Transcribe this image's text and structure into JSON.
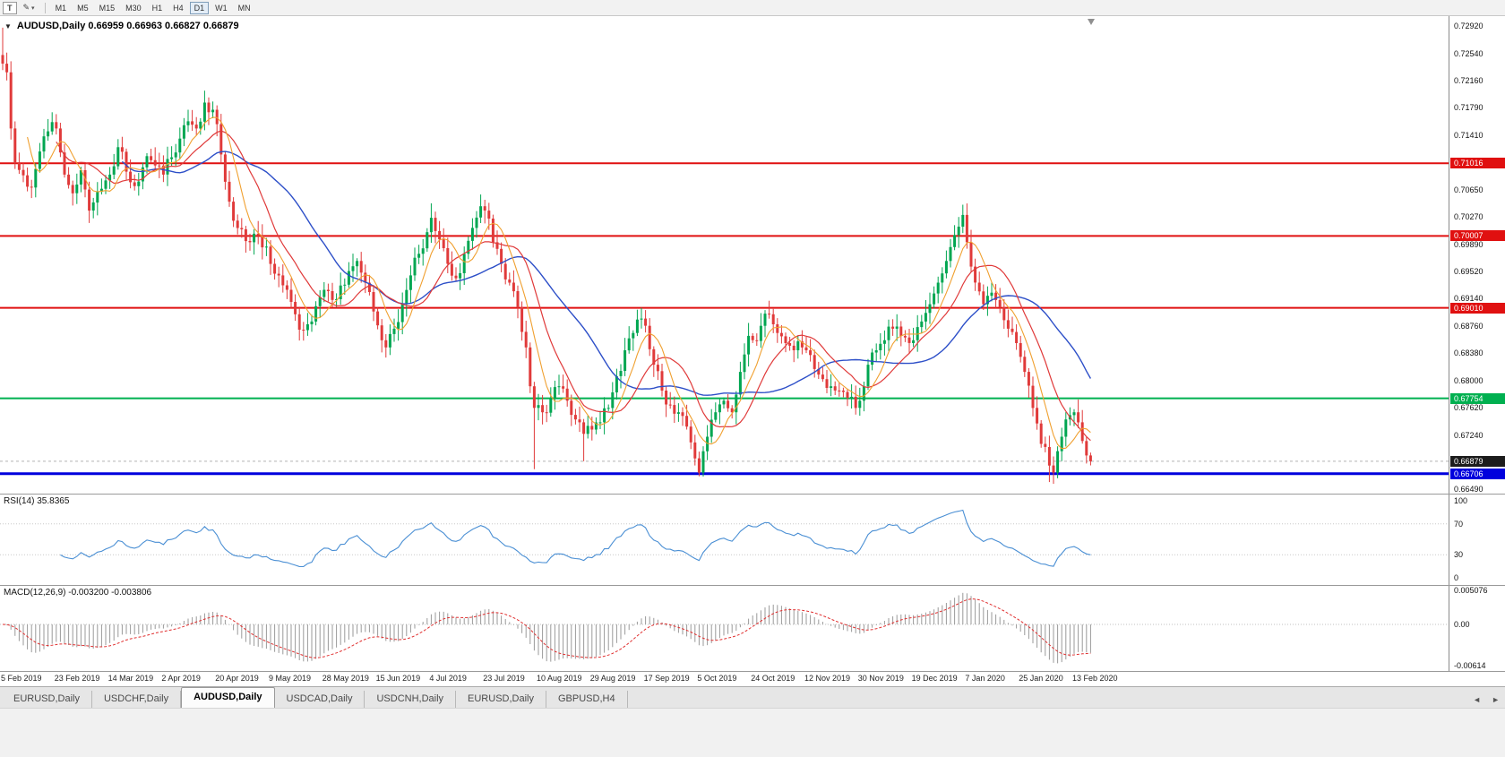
{
  "toolbar": {
    "template_button": "T",
    "draw_button": "✎",
    "dropdown_arrow": "▾",
    "timeframes": [
      "M1",
      "M5",
      "M15",
      "M30",
      "H1",
      "H4",
      "D1",
      "W1",
      "MN"
    ],
    "active_timeframe": "D1"
  },
  "chart": {
    "collapse_arrow": "▼",
    "symbol_ohlc": "AUDUSD,Daily  0.66959 0.66963 0.66827 0.66879"
  },
  "current_price": {
    "value": 0.66879,
    "label": "0.66879",
    "color": "#1c1c1c"
  },
  "levels": [
    {
      "price": 0.71016,
      "label": "0.71016",
      "color": "#e01010",
      "width": 2
    },
    {
      "price": 0.70007,
      "label": "0.70007",
      "color": "#e01010",
      "width": 2
    },
    {
      "price": 0.6901,
      "label": "0.69010",
      "color": "#e01010",
      "width": 2
    },
    {
      "price": 0.67754,
      "label": "0.67754",
      "color": "#00b050",
      "width": 2
    },
    {
      "price": 0.66706,
      "label": "0.66706",
      "color": "#0000dd",
      "width": 3
    }
  ],
  "price_axis": {
    "ticks": [
      "0.72920",
      "0.72540",
      "0.72160",
      "0.71790",
      "0.71410",
      "0.70650",
      "0.70270",
      "0.69890",
      "0.69520",
      "0.69140",
      "0.68760",
      "0.68380",
      "0.68000",
      "0.67620",
      "0.67240",
      "0.66490"
    ]
  },
  "rsi": {
    "header": "RSI(14) 35.8365",
    "axis": [
      "100",
      "70",
      "30",
      "0"
    ],
    "levels": [
      70,
      30
    ],
    "color": "#4a8fd4"
  },
  "macd": {
    "header": "MACD(12,26,9) -0.003200 -0.003806",
    "axis": [
      "0.005076",
      "0.00",
      "-0.00614"
    ],
    "scale_max": 0.005076,
    "scale_min": -0.00614
  },
  "dates": [
    "5 Feb 2019",
    "23 Feb 2019",
    "14 Mar 2019",
    "2 Apr 2019",
    "20 Apr 2019",
    "9 May 2019",
    "28 May 2019",
    "15 Jun 2019",
    "4 Jul 2019",
    "23 Jul 2019",
    "10 Aug 2019",
    "29 Aug 2019",
    "17 Sep 2019",
    "5 Oct 2019",
    "24 Oct 2019",
    "12 Nov 2019",
    "30 Nov 2019",
    "19 Dec 2019",
    "7 Jan 2020",
    "25 Jan 2020",
    "13 Feb 2020"
  ],
  "tabs": [
    "EURUSD,Daily",
    "USDCHF,Daily",
    "AUDUSD,Daily",
    "USDCAD,Daily",
    "USDCNH,Daily",
    "EURUSD,Daily",
    "GBPUSD,H4"
  ],
  "active_tab": 2,
  "tab_arrows": {
    "left": "◄",
    "right": "►"
  },
  "chart_data": {
    "type": "candlestick",
    "symbol": "AUDUSD",
    "timeframe": "Daily",
    "title": "AUDUSD,Daily",
    "price_max": 0.7306,
    "price_min": 0.6643,
    "candle_count": 265,
    "bar_spacing": 4.6,
    "noise": 0.0011,
    "wick": 0.0018,
    "last_close": 0.66879,
    "close_waypoints": [
      [
        0,
        0.724
      ],
      [
        1,
        0.7228
      ],
      [
        2,
        0.715
      ],
      [
        3,
        0.7102
      ],
      [
        5,
        0.7085
      ],
      [
        7,
        0.7068
      ],
      [
        9,
        0.7118
      ],
      [
        11,
        0.7146
      ],
      [
        13,
        0.715
      ],
      [
        15,
        0.7086
      ],
      [
        17,
        0.706
      ],
      [
        19,
        0.7092
      ],
      [
        21,
        0.7036
      ],
      [
        23,
        0.7062
      ],
      [
        26,
        0.7086
      ],
      [
        28,
        0.7124
      ],
      [
        30,
        0.709
      ],
      [
        32,
        0.707
      ],
      [
        34,
        0.7096
      ],
      [
        36,
        0.7106
      ],
      [
        39,
        0.7086
      ],
      [
        41,
        0.711
      ],
      [
        43,
        0.7136
      ],
      [
        45,
        0.716
      ],
      [
        47,
        0.715
      ],
      [
        49,
        0.7186
      ],
      [
        51,
        0.7176
      ],
      [
        52,
        0.7156
      ],
      [
        54,
        0.7076
      ],
      [
        56,
        0.7022
      ],
      [
        58,
        0.701
      ],
      [
        60,
        0.6992
      ],
      [
        62,
        0.7002
      ],
      [
        64,
        0.6986
      ],
      [
        65,
        0.6962
      ],
      [
        67,
        0.6946
      ],
      [
        69,
        0.6926
      ],
      [
        71,
        0.6892
      ],
      [
        73,
        0.687
      ],
      [
        75,
        0.6882
      ],
      [
        77,
        0.6916
      ],
      [
        78,
        0.6926
      ],
      [
        80,
        0.6912
      ],
      [
        82,
        0.6932
      ],
      [
        84,
        0.6952
      ],
      [
        86,
        0.6966
      ],
      [
        88,
        0.6936
      ],
      [
        90,
        0.6896
      ],
      [
        92,
        0.6856
      ],
      [
        93,
        0.6846
      ],
      [
        95,
        0.6872
      ],
      [
        97,
        0.6906
      ],
      [
        99,
        0.6946
      ],
      [
        101,
        0.6976
      ],
      [
        103,
        0.7006
      ],
      [
        104,
        0.7026
      ],
      [
        106,
        0.6996
      ],
      [
        108,
        0.6962
      ],
      [
        110,
        0.6942
      ],
      [
        112,
        0.6976
      ],
      [
        114,
        0.7012
      ],
      [
        116,
        0.7042
      ],
      [
        117,
        0.7036
      ],
      [
        119,
        0.6992
      ],
      [
        121,
        0.6962
      ],
      [
        123,
        0.6936
      ],
      [
        125,
        0.6902
      ],
      [
        127,
        0.6846
      ],
      [
        128,
        0.6792
      ],
      [
        129,
        0.6762
      ],
      [
        131,
        0.6756
      ],
      [
        133,
        0.6776
      ],
      [
        135,
        0.6792
      ],
      [
        137,
        0.6772
      ],
      [
        139,
        0.6746
      ],
      [
        141,
        0.6726
      ],
      [
        143,
        0.6732
      ],
      [
        145,
        0.6742
      ],
      [
        147,
        0.6762
      ],
      [
        149,
        0.6806
      ],
      [
        151,
        0.6842
      ],
      [
        153,
        0.6866
      ],
      [
        155,
        0.6886
      ],
      [
        156,
        0.6876
      ],
      [
        158,
        0.6822
      ],
      [
        160,
        0.6786
      ],
      [
        162,
        0.6766
      ],
      [
        164,
        0.6756
      ],
      [
        166,
        0.6736
      ],
      [
        168,
        0.6692
      ],
      [
        169,
        0.6672
      ],
      [
        171,
        0.6722
      ],
      [
        173,
        0.6756
      ],
      [
        175,
        0.6772
      ],
      [
        177,
        0.6756
      ],
      [
        179,
        0.6812
      ],
      [
        181,
        0.6862
      ],
      [
        182,
        0.6856
      ],
      [
        184,
        0.6876
      ],
      [
        186,
        0.6892
      ],
      [
        188,
        0.6866
      ],
      [
        190,
        0.6852
      ],
      [
        192,
        0.6842
      ],
      [
        194,
        0.6846
      ],
      [
        195,
        0.6842
      ],
      [
        197,
        0.6816
      ],
      [
        199,
        0.6802
      ],
      [
        201,
        0.6792
      ],
      [
        203,
        0.6786
      ],
      [
        205,
        0.6776
      ],
      [
        207,
        0.6762
      ],
      [
        208,
        0.6772
      ],
      [
        210,
        0.6822
      ],
      [
        212,
        0.6842
      ],
      [
        214,
        0.6856
      ],
      [
        216,
        0.6872
      ],
      [
        218,
        0.6862
      ],
      [
        220,
        0.6852
      ],
      [
        221,
        0.6856
      ],
      [
        223,
        0.6882
      ],
      [
        225,
        0.6906
      ],
      [
        227,
        0.6936
      ],
      [
        229,
        0.6966
      ],
      [
        231,
        0.7002
      ],
      [
        233,
        0.703
      ],
      [
        234,
        0.6992
      ],
      [
        236,
        0.6936
      ],
      [
        238,
        0.6906
      ],
      [
        240,
        0.6922
      ],
      [
        242,
        0.6902
      ],
      [
        244,
        0.6872
      ],
      [
        246,
        0.6852
      ],
      [
        248,
        0.6812
      ],
      [
        250,
        0.6762
      ],
      [
        252,
        0.6712
      ],
      [
        254,
        0.6682
      ],
      [
        255,
        0.6672
      ],
      [
        256,
        0.6702
      ],
      [
        257,
        0.6722
      ],
      [
        258,
        0.6746
      ],
      [
        259,
        0.6752
      ],
      [
        260,
        0.6756
      ],
      [
        261,
        0.6742
      ],
      [
        262,
        0.6716
      ],
      [
        263,
        0.6696
      ],
      [
        264,
        0.66879
      ]
    ],
    "special_wicks": [
      {
        "i": 0,
        "high": 0.729
      },
      {
        "i": 49,
        "high": 0.7194
      },
      {
        "i": 93,
        "low": 0.6832
      },
      {
        "i": 104,
        "high": 0.7046
      },
      {
        "i": 116,
        "high": 0.7046
      },
      {
        "i": 129,
        "low": 0.6677
      },
      {
        "i": 141,
        "low": 0.6688
      },
      {
        "i": 169,
        "low": 0.667
      },
      {
        "i": 233,
        "high": 0.704
      },
      {
        "i": 254,
        "low": 0.6659
      }
    ],
    "date_indices": [
      0,
      13,
      26,
      39,
      52,
      65,
      78,
      91,
      104,
      117,
      130,
      143,
      156,
      169,
      182,
      195,
      208,
      221,
      234,
      247,
      260
    ],
    "ma_fast": 7,
    "ma_mid": 14,
    "ma_slow": 30,
    "colors": {
      "up": "#00a651",
      "down": "#e03a3a",
      "ma_fast": "#f0a030",
      "ma_mid": "#e03a3a",
      "ma_slow": "#2d4fc8"
    },
    "indicators": {
      "rsi_period": 14,
      "macd_params": [
        12,
        26,
        9
      ]
    }
  }
}
